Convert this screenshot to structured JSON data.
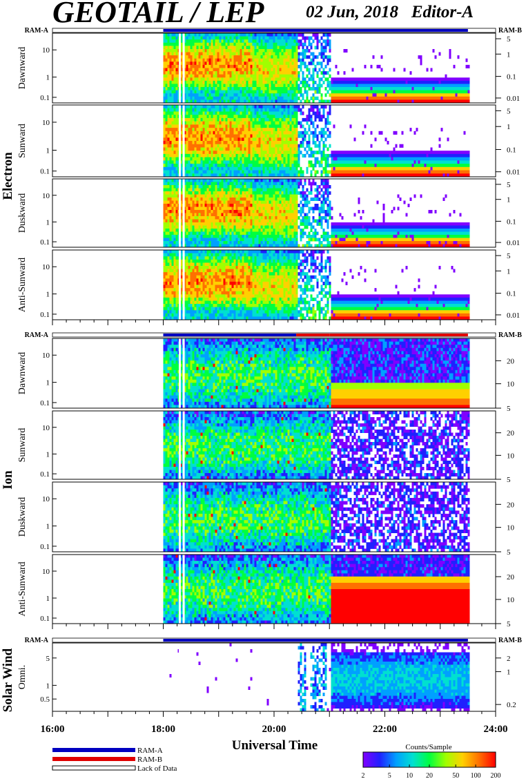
{
  "header": {
    "instrument": "GEOTAIL / LEP",
    "date": "02 Jun, 2018",
    "editor": "Editor-A"
  },
  "ram_labels": {
    "a": "RAM-A",
    "b": "RAM-B"
  },
  "sections": {
    "electron": "Electron",
    "ion": "Ion",
    "solar_wind": "Solar Wind"
  },
  "panels": {
    "electron": [
      {
        "label": "Dawnward"
      },
      {
        "label": "Sunward"
      },
      {
        "label": "Duskward"
      },
      {
        "label": "Anti-Sunward"
      }
    ],
    "ion": [
      {
        "label": "Dawnward"
      },
      {
        "label": "Sunward"
      },
      {
        "label": "Duskward"
      },
      {
        "label": "Anti-Sunward"
      }
    ],
    "solar_wind": [
      {
        "label": "Omni."
      }
    ]
  },
  "axes": {
    "left_ticks_electron_ion": [
      "10",
      "1",
      "0.1"
    ],
    "right_ticks_electron": [
      "5",
      "1",
      "0.1",
      "0.01"
    ],
    "right_ticks_ion": [
      "20",
      "10",
      "5"
    ],
    "left_ticks_solar": [
      "5",
      "1",
      "0.5"
    ],
    "right_ticks_solar": [
      "2",
      "1",
      "0.2"
    ],
    "x_ticks": [
      "16:00",
      "18:00",
      "20:00",
      "22:00",
      "24:00"
    ],
    "x_label": "Universal Time"
  },
  "legend": {
    "ram_a": "RAM-A",
    "ram_b": "RAM-B",
    "lack": "Lack of Data",
    "colorbar_title": "Counts/Sample",
    "colorbar_ticks": [
      "2",
      "5",
      "10",
      "20",
      "50",
      "100",
      "200"
    ]
  },
  "colors": {
    "ram_a": "#0000c0",
    "ram_b": "#e00000",
    "palette": [
      "#8000ff",
      "#2020ff",
      "#00a0ff",
      "#00e0d0",
      "#00ff40",
      "#a0ff00",
      "#ffd000",
      "#ff7000",
      "#ff0000"
    ]
  },
  "chart_data": {
    "type": "heatmap",
    "x_range_hours": [
      16,
      24
    ],
    "data_start_hour": 18.0,
    "data_end_hour": 23.5,
    "color_scale": "log",
    "color_range": [
      2,
      200
    ]
  }
}
